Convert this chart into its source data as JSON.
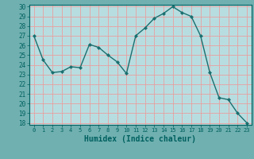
{
  "x": [
    0,
    1,
    2,
    3,
    4,
    5,
    6,
    7,
    8,
    9,
    10,
    11,
    12,
    13,
    14,
    15,
    16,
    17,
    18,
    19,
    20,
    21,
    22,
    23
  ],
  "y": [
    27,
    24.5,
    23.2,
    23.3,
    23.8,
    23.7,
    26.1,
    25.8,
    25.0,
    24.3,
    23.1,
    27.0,
    27.8,
    28.8,
    29.3,
    30.0,
    29.4,
    29.0,
    27.0,
    23.2,
    20.6,
    20.4,
    19.0,
    18.0
  ],
  "xlabel": "Humidex (Indice chaleur)",
  "xlim": [
    -0.5,
    23.5
  ],
  "ylim": [
    17.8,
    30.2
  ],
  "yticks": [
    18,
    19,
    20,
    21,
    22,
    23,
    24,
    25,
    26,
    27,
    28,
    29,
    30
  ],
  "xticks": [
    0,
    1,
    2,
    3,
    4,
    5,
    6,
    7,
    8,
    9,
    10,
    11,
    12,
    13,
    14,
    15,
    16,
    17,
    18,
    19,
    20,
    21,
    22,
    23
  ],
  "line_color": "#1a7070",
  "marker_color": "#1a7070",
  "plot_bg": "#b8dde0",
  "grid_color": "#e8a0a0",
  "xlabel_color": "#006060",
  "tick_color": "#006060",
  "bottom_bg": "#70b0b0",
  "fig_bg": "#70b0b0"
}
